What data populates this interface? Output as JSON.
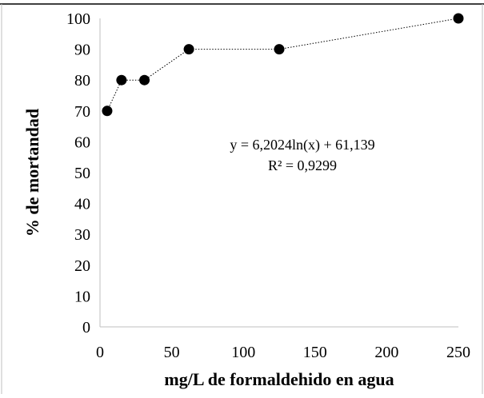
{
  "chart_data": {
    "type": "scatter",
    "x": [
      5,
      15,
      31,
      62,
      125,
      250
    ],
    "y": [
      70,
      80,
      80,
      90,
      90,
      100
    ],
    "xlabel": "mg/L de formaldehido en agua",
    "ylabel": "% de mortandad",
    "xlim": [
      0,
      250
    ],
    "ylim": [
      0,
      100
    ],
    "xticks": [
      "0",
      "50",
      "100",
      "150",
      "200",
      "250"
    ],
    "yticks": [
      "0",
      "10",
      "20",
      "30",
      "40",
      "50",
      "60",
      "70",
      "80",
      "90",
      "100"
    ],
    "connector_line": "dotted",
    "marker_color": "#000000",
    "grid": false,
    "annotation": {
      "equation": "y = 6,2024ln(x) + 61,139",
      "r_squared": "R² = 0,9299"
    }
  }
}
